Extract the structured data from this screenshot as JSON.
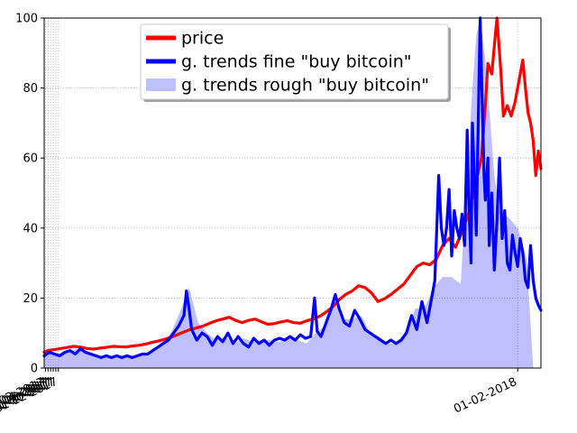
{
  "chart_data": {
    "type": "line",
    "title": "",
    "xlabel": "",
    "ylabel": "",
    "ylim": [
      0,
      100
    ],
    "xlim": [
      "2017-01-01",
      "2018-01-20"
    ],
    "grid": true,
    "grid_style": "dotted",
    "legend_position": "top-center",
    "x_ticks": [
      "01-02-2017",
      "01-04-2017",
      "01-06-2017",
      "01-08-2017",
      "01-10-2017",
      "01-12-2017",
      "01-02-2018"
    ],
    "x_tick_dates": [
      "2017-01-02",
      "2017-01-04",
      "2017-01-06",
      "2017-01-08",
      "2017-01-10",
      "2017-01-12",
      "2018-01-02"
    ],
    "y_ticks": [
      "0",
      "20",
      "40",
      "60",
      "80",
      "100"
    ],
    "y_tick_values": [
      0,
      20,
      40,
      60,
      80,
      100
    ],
    "series": [
      {
        "name": "price",
        "kind": "line",
        "color": "#ff0000",
        "points": [
          [
            "2017-01-01",
            4.5
          ],
          [
            "2017-01-04",
            5
          ],
          [
            "2017-01-09",
            5.3
          ],
          [
            "2017-01-14",
            5.6
          ],
          [
            "2017-01-19",
            5.9
          ],
          [
            "2017-01-24",
            6.2
          ],
          [
            "2017-01-29",
            6.0
          ],
          [
            "2017-02-03",
            5.6
          ],
          [
            "2017-02-08",
            5.4
          ],
          [
            "2017-02-13",
            5.7
          ],
          [
            "2017-02-18",
            5.9
          ],
          [
            "2017-02-23",
            6.2
          ],
          [
            "2017-02-28",
            6.1
          ],
          [
            "2017-03-05",
            6.0
          ],
          [
            "2017-03-10",
            6.3
          ],
          [
            "2017-03-15",
            6.5
          ],
          [
            "2017-03-20",
            6.8
          ],
          [
            "2017-03-25",
            7.3
          ],
          [
            "2017-03-30",
            7.7
          ],
          [
            "2017-04-04",
            8.2
          ],
          [
            "2017-04-09",
            8.8
          ],
          [
            "2017-04-14",
            9.5
          ],
          [
            "2017-04-19",
            10.3
          ],
          [
            "2017-04-24",
            11.0
          ],
          [
            "2017-04-29",
            11.5
          ],
          [
            "2017-05-04",
            12.0
          ],
          [
            "2017-05-09",
            12.8
          ],
          [
            "2017-05-14",
            13.5
          ],
          [
            "2017-05-19",
            14.0
          ],
          [
            "2017-05-24",
            14.5
          ],
          [
            "2017-05-29",
            13.6
          ],
          [
            "2017-06-03",
            13.0
          ],
          [
            "2017-06-08",
            13.6
          ],
          [
            "2017-06-13",
            14.0
          ],
          [
            "2017-06-18",
            13.2
          ],
          [
            "2017-06-23",
            12.5
          ],
          [
            "2017-06-28",
            12.7
          ],
          [
            "2017-07-03",
            13.2
          ],
          [
            "2017-07-08",
            13.5
          ],
          [
            "2017-07-13",
            13.0
          ],
          [
            "2017-07-18",
            12.8
          ],
          [
            "2017-07-23",
            13.5
          ],
          [
            "2017-07-28",
            14.0
          ],
          [
            "2017-08-02",
            14.8
          ],
          [
            "2017-08-07",
            16.0
          ],
          [
            "2017-08-12",
            17.5
          ],
          [
            "2017-08-17",
            19.5
          ],
          [
            "2017-08-22",
            21.0
          ],
          [
            "2017-08-27",
            22.0
          ],
          [
            "2017-09-01",
            23.5
          ],
          [
            "2017-09-06",
            23.0
          ],
          [
            "2017-09-11",
            21.5
          ],
          [
            "2017-09-16",
            19.0
          ],
          [
            "2017-09-21",
            19.8
          ],
          [
            "2017-09-26",
            21.0
          ],
          [
            "2017-10-01",
            22.5
          ],
          [
            "2017-10-06",
            24.0
          ],
          [
            "2017-10-11",
            26.5
          ],
          [
            "2017-10-16",
            29.0
          ],
          [
            "2017-10-21",
            30.0
          ],
          [
            "2017-10-26",
            29.5
          ],
          [
            "2017-10-31",
            31.0
          ],
          [
            "2017-11-05",
            35.0
          ],
          [
            "2017-11-10",
            37.0
          ],
          [
            "2017-11-15",
            34.5
          ],
          [
            "2017-11-20",
            39.0
          ],
          [
            "2017-11-25",
            44.0
          ],
          [
            "2017-11-30",
            52.0
          ],
          [
            "2017-12-05",
            60.0
          ],
          [
            "2017-12-08",
            75.0
          ],
          [
            "2017-12-10",
            87.0
          ],
          [
            "2017-12-13",
            84.0
          ],
          [
            "2017-12-15",
            92.0
          ],
          [
            "2017-12-17",
            100.0
          ],
          [
            "2017-12-20",
            85.0
          ],
          [
            "2017-12-22",
            72.0
          ],
          [
            "2017-12-25",
            75.0
          ],
          [
            "2017-12-28",
            72.0
          ],
          [
            "2017-12-31",
            76.0
          ],
          [
            "2018-01-03",
            82.0
          ],
          [
            "2018-01-06",
            88.0
          ],
          [
            "2018-01-08",
            80.0
          ],
          [
            "2018-01-10",
            73.0
          ],
          [
            "2018-01-12",
            70.0
          ],
          [
            "2018-01-14",
            65.0
          ],
          [
            "2018-01-16",
            55.0
          ],
          [
            "2018-01-18",
            62.0
          ],
          [
            "2018-01-20",
            57.0
          ]
        ]
      },
      {
        "name": "g. trends fine \"buy bitcoin\"",
        "kind": "line",
        "color": "#0000ff",
        "points": [
          [
            "2017-01-01",
            3.5
          ],
          [
            "2017-01-05",
            4.5
          ],
          [
            "2017-01-09",
            4.0
          ],
          [
            "2017-01-13",
            3.5
          ],
          [
            "2017-01-17",
            4.5
          ],
          [
            "2017-01-21",
            5.0
          ],
          [
            "2017-01-25",
            4.0
          ],
          [
            "2017-01-29",
            5.5
          ],
          [
            "2017-02-02",
            4.5
          ],
          [
            "2017-02-06",
            4.0
          ],
          [
            "2017-02-10",
            3.5
          ],
          [
            "2017-02-14",
            3.0
          ],
          [
            "2017-02-18",
            3.5
          ],
          [
            "2017-02-22",
            3.0
          ],
          [
            "2017-02-26",
            3.5
          ],
          [
            "2017-03-02",
            3.0
          ],
          [
            "2017-03-06",
            3.5
          ],
          [
            "2017-03-10",
            3.0
          ],
          [
            "2017-03-14",
            3.5
          ],
          [
            "2017-03-18",
            4.0
          ],
          [
            "2017-03-22",
            4.0
          ],
          [
            "2017-03-26",
            5.0
          ],
          [
            "2017-03-30",
            6.0
          ],
          [
            "2017-04-03",
            7.0
          ],
          [
            "2017-04-07",
            8.0
          ],
          [
            "2017-04-11",
            10.0
          ],
          [
            "2017-04-15",
            12.0
          ],
          [
            "2017-04-19",
            15.0
          ],
          [
            "2017-04-21",
            22.0
          ],
          [
            "2017-04-23",
            17.0
          ],
          [
            "2017-04-25",
            11.0
          ],
          [
            "2017-04-29",
            8.0
          ],
          [
            "2017-05-03",
            10.0
          ],
          [
            "2017-05-07",
            9.0
          ],
          [
            "2017-05-11",
            6.5
          ],
          [
            "2017-05-15",
            9.0
          ],
          [
            "2017-05-19",
            7.5
          ],
          [
            "2017-05-23",
            10.0
          ],
          [
            "2017-05-27",
            7.0
          ],
          [
            "2017-05-31",
            9.0
          ],
          [
            "2017-06-04",
            7.0
          ],
          [
            "2017-06-08",
            6.0
          ],
          [
            "2017-06-12",
            8.5
          ],
          [
            "2017-06-16",
            7.0
          ],
          [
            "2017-06-20",
            8.0
          ],
          [
            "2017-06-24",
            6.5
          ],
          [
            "2017-06-28",
            8.0
          ],
          [
            "2017-07-02",
            8.5
          ],
          [
            "2017-07-06",
            8.0
          ],
          [
            "2017-07-10",
            9.0
          ],
          [
            "2017-07-14",
            8.0
          ],
          [
            "2017-07-18",
            9.5
          ],
          [
            "2017-07-22",
            8.5
          ],
          [
            "2017-07-26",
            9.0
          ],
          [
            "2017-07-29",
            20.0
          ],
          [
            "2017-07-31",
            10.5
          ],
          [
            "2017-08-03",
            9.0
          ],
          [
            "2017-08-07",
            13.0
          ],
          [
            "2017-08-11",
            17.0
          ],
          [
            "2017-08-14",
            21.0
          ],
          [
            "2017-08-17",
            17.0
          ],
          [
            "2017-08-21",
            13.0
          ],
          [
            "2017-08-25",
            12.0
          ],
          [
            "2017-08-29",
            16.5
          ],
          [
            "2017-09-02",
            14.0
          ],
          [
            "2017-09-06",
            11.0
          ],
          [
            "2017-09-10",
            10.0
          ],
          [
            "2017-09-14",
            9.0
          ],
          [
            "2017-09-18",
            8.0
          ],
          [
            "2017-09-22",
            7.0
          ],
          [
            "2017-09-26",
            8.0
          ],
          [
            "2017-09-30",
            7.0
          ],
          [
            "2017-10-04",
            8.0
          ],
          [
            "2017-10-08",
            10.0
          ],
          [
            "2017-10-12",
            15.0
          ],
          [
            "2017-10-16",
            11.0
          ],
          [
            "2017-10-20",
            19.0
          ],
          [
            "2017-10-24",
            13.0
          ],
          [
            "2017-10-28",
            21.0
          ],
          [
            "2017-10-30",
            25.0
          ],
          [
            "2017-11-01",
            45.0
          ],
          [
            "2017-11-02",
            55.0
          ],
          [
            "2017-11-04",
            40.0
          ],
          [
            "2017-11-06",
            35.0
          ],
          [
            "2017-11-08",
            40.0
          ],
          [
            "2017-11-10",
            51.0
          ],
          [
            "2017-11-12",
            32.0
          ],
          [
            "2017-11-14",
            45.0
          ],
          [
            "2017-11-16",
            40.0
          ],
          [
            "2017-11-18",
            37.0
          ],
          [
            "2017-11-20",
            44.0
          ],
          [
            "2017-11-22",
            35.0
          ],
          [
            "2017-11-24",
            68.0
          ],
          [
            "2017-11-25",
            50.0
          ],
          [
            "2017-11-27",
            30.0
          ],
          [
            "2017-11-28",
            70.0
          ],
          [
            "2017-11-30",
            50.0
          ],
          [
            "2017-12-01",
            38.0
          ],
          [
            "2017-12-02",
            60.0
          ],
          [
            "2017-12-04",
            100.0
          ],
          [
            "2017-12-05",
            85.0
          ],
          [
            "2017-12-07",
            55.0
          ],
          [
            "2017-12-08",
            48.0
          ],
          [
            "2017-12-10",
            60.0
          ],
          [
            "2017-12-11",
            35.0
          ],
          [
            "2017-12-13",
            50.0
          ],
          [
            "2017-12-15",
            28.0
          ],
          [
            "2017-12-17",
            42.0
          ],
          [
            "2017-12-19",
            60.0
          ],
          [
            "2017-12-21",
            37.0
          ],
          [
            "2017-12-23",
            45.0
          ],
          [
            "2017-12-25",
            30.0
          ],
          [
            "2017-12-27",
            28.0
          ],
          [
            "2017-12-29",
            38.0
          ],
          [
            "2017-12-31",
            33.0
          ],
          [
            "2018-01-02",
            29.0
          ],
          [
            "2018-01-04",
            37.0
          ],
          [
            "2018-01-06",
            33.0
          ],
          [
            "2018-01-08",
            25.0
          ],
          [
            "2018-01-10",
            23.0
          ],
          [
            "2018-01-12",
            35.0
          ],
          [
            "2018-01-14",
            25.0
          ],
          [
            "2018-01-16",
            20.0
          ],
          [
            "2018-01-18",
            18.0
          ],
          [
            "2018-01-20",
            16.5
          ]
        ]
      },
      {
        "name": "g. trends rough \"buy bitcoin\"",
        "kind": "area",
        "color": "#0000ff",
        "points": [
          [
            "2017-01-01",
            5.0
          ],
          [
            "2017-01-08",
            4.5
          ],
          [
            "2017-01-15",
            4.0
          ],
          [
            "2017-01-22",
            4.5
          ],
          [
            "2017-01-29",
            6.0
          ],
          [
            "2017-02-05",
            4.0
          ],
          [
            "2017-02-12",
            3.5
          ],
          [
            "2017-02-19",
            3.5
          ],
          [
            "2017-02-26",
            3.0
          ],
          [
            "2017-03-05",
            3.0
          ],
          [
            "2017-03-12",
            3.5
          ],
          [
            "2017-03-19",
            4.0
          ],
          [
            "2017-03-26",
            4.5
          ],
          [
            "2017-04-02",
            7.0
          ],
          [
            "2017-04-09",
            10.0
          ],
          [
            "2017-04-16",
            16.0
          ],
          [
            "2017-04-23",
            23.0
          ],
          [
            "2017-04-30",
            13.0
          ],
          [
            "2017-05-07",
            10.0
          ],
          [
            "2017-05-14",
            8.0
          ],
          [
            "2017-05-21",
            9.0
          ],
          [
            "2017-05-28",
            7.0
          ],
          [
            "2017-06-04",
            8.5
          ],
          [
            "2017-06-11",
            7.5
          ],
          [
            "2017-06-18",
            8.0
          ],
          [
            "2017-06-25",
            8.0
          ],
          [
            "2017-07-02",
            7.5
          ],
          [
            "2017-07-09",
            8.5
          ],
          [
            "2017-07-16",
            8.0
          ],
          [
            "2017-07-23",
            7.0
          ],
          [
            "2017-07-30",
            10.0
          ],
          [
            "2017-08-06",
            12.0
          ],
          [
            "2017-08-13",
            20.0
          ],
          [
            "2017-08-20",
            14.0
          ],
          [
            "2017-08-27",
            14.0
          ],
          [
            "2017-09-03",
            15.0
          ],
          [
            "2017-09-10",
            10.0
          ],
          [
            "2017-09-17",
            9.0
          ],
          [
            "2017-09-24",
            7.0
          ],
          [
            "2017-10-01",
            7.0
          ],
          [
            "2017-10-08",
            11.0
          ],
          [
            "2017-10-15",
            17.0
          ],
          [
            "2017-10-22",
            17.0
          ],
          [
            "2017-10-29",
            23.0
          ],
          [
            "2017-11-05",
            26.0
          ],
          [
            "2017-11-12",
            26.0
          ],
          [
            "2017-11-19",
            24.0
          ],
          [
            "2017-11-24",
            55.0
          ],
          [
            "2017-11-28",
            80.0
          ],
          [
            "2017-12-01",
            95.0
          ],
          [
            "2017-12-04",
            100.0
          ],
          [
            "2017-12-08",
            88.0
          ],
          [
            "2017-12-12",
            70.0
          ],
          [
            "2017-12-15",
            55.0
          ],
          [
            "2017-12-19",
            45.0
          ],
          [
            "2017-12-26",
            43.0
          ],
          [
            "2018-01-02",
            40.0
          ],
          [
            "2018-01-09",
            31.0
          ],
          [
            "2018-01-14",
            0.0
          ]
        ]
      }
    ]
  }
}
